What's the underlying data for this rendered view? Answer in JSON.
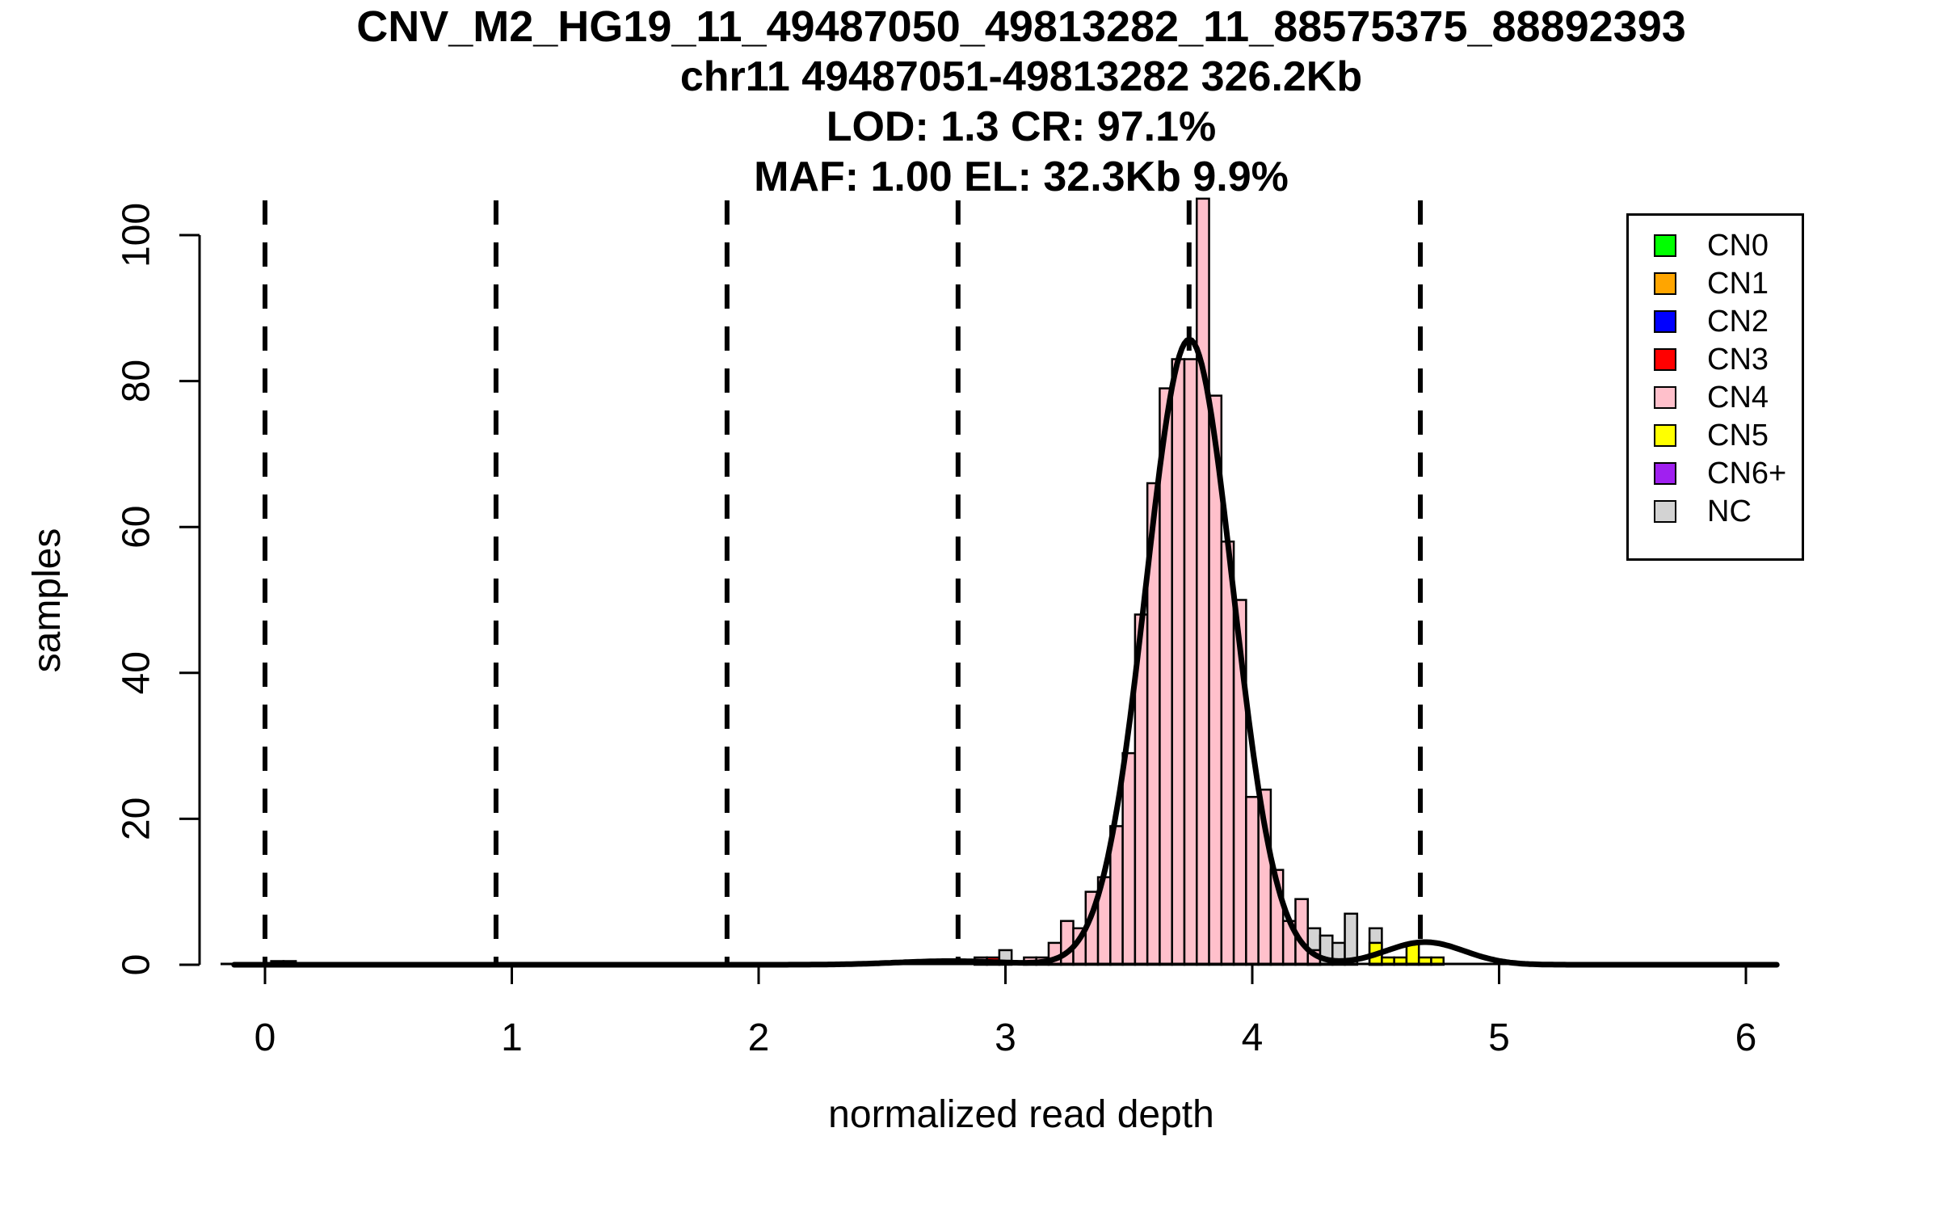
{
  "title": {
    "line1": "CNV_M2_HG19_11_49487050_49813282_11_88575375_88892393",
    "line2": "chr11 49487051-49813282 326.2Kb",
    "line3": "LOD: 1.3 CR: 97.1%",
    "line4": "MAF: 1.00 EL: 32.3Kb 9.9%"
  },
  "axes": {
    "x_label": "normalized read depth",
    "y_label": "samples",
    "x_ticks": [
      0,
      1,
      2,
      3,
      4,
      5,
      6
    ],
    "y_ticks": [
      0,
      20,
      40,
      60,
      80,
      100
    ]
  },
  "legend": {
    "items": [
      {
        "label": "CN0",
        "color": "#00FF00"
      },
      {
        "label": "CN1",
        "color": "#FFA500"
      },
      {
        "label": "CN2",
        "color": "#0000FF"
      },
      {
        "label": "CN3",
        "color": "#FF0000"
      },
      {
        "label": "CN4",
        "color": "#FFC0CB"
      },
      {
        "label": "CN5",
        "color": "#FFFF00"
      },
      {
        "label": "CN6+",
        "color": "#A020F0"
      },
      {
        "label": "NC",
        "color": "#D3D3D3"
      }
    ]
  },
  "chart_data": {
    "type": "bar",
    "subtype": "histogram-with-density-curve",
    "xlabel": "normalized read depth",
    "ylabel": "samples",
    "xlim": [
      -0.13,
      6.13
    ],
    "ylim": [
      0,
      105
    ],
    "bin_width": 0.05,
    "bar_outline_color": "#000000",
    "background_color": "#FFFFFF",
    "dashed_guide_lines_x": [
      0,
      0.936,
      1.872,
      2.808,
      3.744,
      4.681
    ],
    "bars": [
      {
        "center": 0.05,
        "count": 0.5,
        "cn": "NC"
      },
      {
        "center": 0.1,
        "count": 0.5,
        "cn": "NC"
      },
      {
        "center": 2.9,
        "count": 1,
        "cn": "CN4"
      },
      {
        "center": 2.95,
        "count": 1,
        "cn": "CN3"
      },
      {
        "center": 3.0,
        "count": 2,
        "cn": "NC"
      },
      {
        "center": 3.1,
        "count": 1,
        "cn": "CN4"
      },
      {
        "center": 3.15,
        "count": 1,
        "cn": "CN4"
      },
      {
        "center": 3.2,
        "count": 3,
        "cn": "CN4"
      },
      {
        "center": 3.25,
        "count": 6,
        "cn": "CN4"
      },
      {
        "center": 3.3,
        "count": 5,
        "cn": "CN4"
      },
      {
        "center": 3.35,
        "count": 10,
        "cn": "CN4"
      },
      {
        "center": 3.4,
        "count": 12,
        "cn": "CN4"
      },
      {
        "center": 3.45,
        "count": 19,
        "cn": "CN4"
      },
      {
        "center": 3.5,
        "count": 29,
        "cn": "CN4"
      },
      {
        "center": 3.55,
        "count": 48,
        "cn": "CN4"
      },
      {
        "center": 3.6,
        "count": 66,
        "cn": "CN4"
      },
      {
        "center": 3.65,
        "count": 79,
        "cn": "CN4"
      },
      {
        "center": 3.7,
        "count": 83,
        "cn": "CN4"
      },
      {
        "center": 3.75,
        "count": 83,
        "cn": "CN4"
      },
      {
        "center": 3.8,
        "count": 105,
        "cn": "CN4"
      },
      {
        "center": 3.85,
        "count": 78,
        "cn": "CN4"
      },
      {
        "center": 3.9,
        "count": 58,
        "cn": "CN4"
      },
      {
        "center": 3.95,
        "count": 50,
        "cn": "CN4"
      },
      {
        "center": 4.0,
        "count": 23,
        "cn": "CN4"
      },
      {
        "center": 4.05,
        "count": 24,
        "cn": "CN4"
      },
      {
        "center": 4.1,
        "count": 13,
        "cn": "CN4"
      },
      {
        "center": 4.15,
        "count": 6,
        "cn": "CN4"
      },
      {
        "center": 4.2,
        "count": 9,
        "cn": "CN4"
      },
      {
        "center": 4.25,
        "count": 5,
        "cn": "NC"
      },
      {
        "center": 4.25,
        "count": 2,
        "cn": "CN4"
      },
      {
        "center": 4.3,
        "count": 4,
        "cn": "NC"
      },
      {
        "center": 4.35,
        "count": 3,
        "cn": "NC"
      },
      {
        "center": 4.4,
        "count": 7,
        "cn": "NC"
      },
      {
        "center": 4.5,
        "count": 5,
        "cn": "NC"
      },
      {
        "center": 4.5,
        "count": 3,
        "cn": "CN5"
      },
      {
        "center": 4.55,
        "count": 1,
        "cn": "CN5"
      },
      {
        "center": 4.6,
        "count": 1,
        "cn": "CN5"
      },
      {
        "center": 4.65,
        "count": 3,
        "cn": "CN5"
      },
      {
        "center": 4.7,
        "count": 1,
        "cn": "CN5"
      },
      {
        "center": 4.75,
        "count": 1,
        "cn": "CN5"
      }
    ],
    "density_curve": {
      "color": "#000000",
      "components": [
        {
          "mean": 3.745,
          "peak": 85.7,
          "sd": 0.176
        },
        {
          "mean": 4.7,
          "peak": 3.1,
          "sd": 0.16
        },
        {
          "mean": 2.78,
          "peak": 0.5,
          "sd": 0.22
        }
      ]
    }
  }
}
